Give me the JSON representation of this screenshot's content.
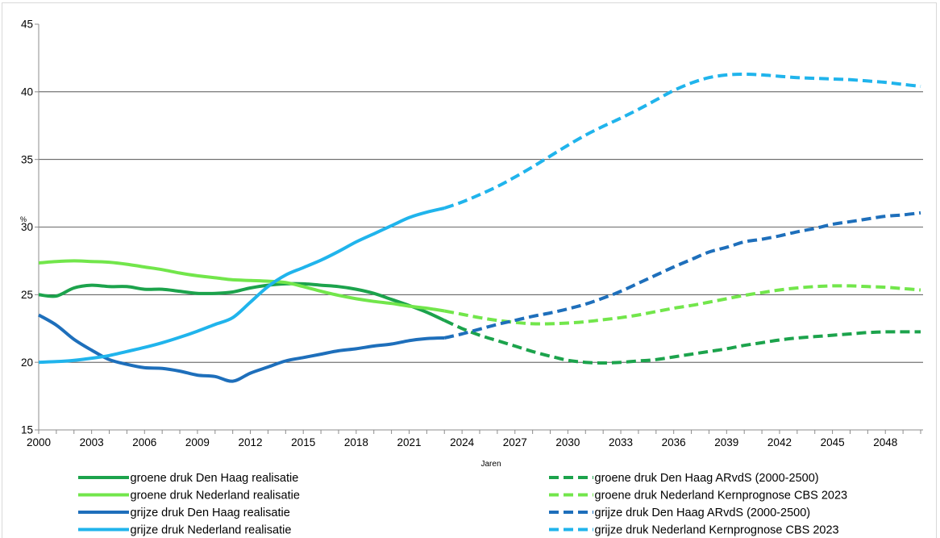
{
  "chart_data": {
    "type": "line",
    "xlabel": "Jaren",
    "ylabel": "%",
    "xlim": [
      2000,
      2050
    ],
    "ylim": [
      15,
      45
    ],
    "xticks": [
      2000,
      2003,
      2006,
      2009,
      2012,
      2015,
      2018,
      2021,
      2024,
      2027,
      2030,
      2033,
      2036,
      2039,
      2042,
      2045,
      2048
    ],
    "yticks": [
      15,
      20,
      25,
      30,
      35,
      40,
      45
    ],
    "grid": {
      "y": true,
      "x": false
    },
    "legend": "bottom",
    "series": [
      {
        "name": "groene druk Den Haag realisatie",
        "color": "#1ca34c",
        "dashed": false,
        "x": [
          2000,
          2001,
          2002,
          2003,
          2004,
          2005,
          2006,
          2007,
          2008,
          2009,
          2010,
          2011,
          2012,
          2013,
          2014,
          2015,
          2016,
          2017,
          2018,
          2019,
          2020,
          2021,
          2022,
          2023
        ],
        "y": [
          25.0,
          24.9,
          25.5,
          25.7,
          25.6,
          25.6,
          25.4,
          25.4,
          25.25,
          25.1,
          25.1,
          25.2,
          25.5,
          25.7,
          25.8,
          25.8,
          25.7,
          25.6,
          25.4,
          25.1,
          24.65,
          24.2,
          23.7,
          23.1
        ]
      },
      {
        "name": "groene druk Nederland realisatie",
        "color": "#72e64b",
        "dashed": false,
        "x": [
          2000,
          2001,
          2002,
          2003,
          2004,
          2005,
          2006,
          2007,
          2008,
          2009,
          2010,
          2011,
          2012,
          2013,
          2014,
          2015,
          2016,
          2017,
          2018,
          2019,
          2020,
          2021,
          2022,
          2023
        ],
        "y": [
          27.35,
          27.45,
          27.5,
          27.45,
          27.4,
          27.25,
          27.05,
          26.85,
          26.6,
          26.4,
          26.25,
          26.1,
          26.05,
          26.0,
          25.9,
          25.6,
          25.25,
          24.95,
          24.7,
          24.5,
          24.35,
          24.15,
          24.0,
          23.8
        ]
      },
      {
        "name": "grijze druk Den Haag realisatie",
        "color": "#1e6fbb",
        "dashed": false,
        "x": [
          2000,
          2001,
          2002,
          2003,
          2004,
          2005,
          2006,
          2007,
          2008,
          2009,
          2010,
          2011,
          2012,
          2013,
          2014,
          2015,
          2016,
          2017,
          2018,
          2019,
          2020,
          2021,
          2022,
          2023
        ],
        "y": [
          23.5,
          22.75,
          21.7,
          20.9,
          20.2,
          19.85,
          19.6,
          19.55,
          19.35,
          19.05,
          18.95,
          18.6,
          19.2,
          19.65,
          20.1,
          20.35,
          20.6,
          20.85,
          21.0,
          21.2,
          21.35,
          21.6,
          21.75,
          21.8
        ]
      },
      {
        "name": "grijze druk Nederland realisatie",
        "color": "#20b4ec",
        "dashed": false,
        "x": [
          2000,
          2001,
          2002,
          2003,
          2004,
          2005,
          2006,
          2007,
          2008,
          2009,
          2010,
          2011,
          2012,
          2013,
          2014,
          2015,
          2016,
          2017,
          2018,
          2019,
          2020,
          2021,
          2022,
          2023
        ],
        "y": [
          20.0,
          20.05,
          20.15,
          20.3,
          20.5,
          20.8,
          21.1,
          21.45,
          21.85,
          22.3,
          22.8,
          23.3,
          24.45,
          25.6,
          26.45,
          27.0,
          27.55,
          28.2,
          28.9,
          29.5,
          30.1,
          30.7,
          31.1,
          31.4
        ]
      },
      {
        "name": "groene druk Den Haag ARvdS (2000-2500)",
        "color": "#1ca34c",
        "dashed": true,
        "x": [
          2023,
          2024,
          2025,
          2026,
          2027,
          2028,
          2029,
          2030,
          2031,
          2032,
          2033,
          2034,
          2035,
          2036,
          2037,
          2038,
          2039,
          2040,
          2041,
          2042,
          2043,
          2044,
          2045,
          2046,
          2047,
          2048,
          2049,
          2050
        ],
        "y": [
          23.1,
          22.5,
          22.0,
          21.6,
          21.2,
          20.8,
          20.45,
          20.15,
          20.0,
          19.95,
          20.0,
          20.1,
          20.2,
          20.4,
          20.6,
          20.8,
          21.0,
          21.25,
          21.45,
          21.65,
          21.8,
          21.9,
          22.0,
          22.1,
          22.2,
          22.25,
          22.25,
          22.25
        ]
      },
      {
        "name": "groene druk Nederland Kernprognose CBS 2023",
        "color": "#72e64b",
        "dashed": true,
        "x": [
          2023,
          2024,
          2025,
          2026,
          2027,
          2028,
          2029,
          2030,
          2031,
          2032,
          2033,
          2034,
          2035,
          2036,
          2037,
          2038,
          2039,
          2040,
          2041,
          2042,
          2043,
          2044,
          2045,
          2046,
          2047,
          2048,
          2049,
          2050
        ],
        "y": [
          23.8,
          23.55,
          23.3,
          23.1,
          22.95,
          22.85,
          22.85,
          22.9,
          23.0,
          23.15,
          23.3,
          23.5,
          23.75,
          24.0,
          24.2,
          24.45,
          24.7,
          24.95,
          25.15,
          25.35,
          25.5,
          25.6,
          25.65,
          25.65,
          25.6,
          25.55,
          25.45,
          25.35
        ]
      },
      {
        "name": "grijze druk Den Haag ARvdS (2000-2500)",
        "color": "#1e6fbb",
        "dashed": true,
        "x": [
          2023,
          2024,
          2025,
          2026,
          2027,
          2028,
          2029,
          2030,
          2031,
          2032,
          2033,
          2034,
          2035,
          2036,
          2037,
          2038,
          2039,
          2040,
          2041,
          2042,
          2043,
          2044,
          2045,
          2046,
          2047,
          2048,
          2049,
          2050
        ],
        "y": [
          21.8,
          22.1,
          22.45,
          22.8,
          23.1,
          23.4,
          23.65,
          23.95,
          24.3,
          24.75,
          25.25,
          25.85,
          26.45,
          27.05,
          27.6,
          28.15,
          28.5,
          28.9,
          29.1,
          29.35,
          29.65,
          29.9,
          30.2,
          30.4,
          30.6,
          30.8,
          30.9,
          31.05
        ]
      },
      {
        "name": "grijze druk Nederland Kernprognose CBS 2023",
        "color": "#20b4ec",
        "dashed": true,
        "x": [
          2023,
          2024,
          2025,
          2026,
          2027,
          2028,
          2029,
          2030,
          2031,
          2032,
          2033,
          2034,
          2035,
          2036,
          2037,
          2038,
          2039,
          2040,
          2041,
          2042,
          2043,
          2044,
          2045,
          2046,
          2047,
          2048,
          2049,
          2050
        ],
        "y": [
          31.4,
          31.85,
          32.4,
          33.0,
          33.7,
          34.45,
          35.25,
          36.05,
          36.8,
          37.45,
          38.05,
          38.7,
          39.4,
          40.1,
          40.65,
          41.05,
          41.25,
          41.3,
          41.25,
          41.15,
          41.05,
          41.0,
          40.95,
          40.9,
          40.8,
          40.7,
          40.55,
          40.4
        ]
      }
    ]
  }
}
